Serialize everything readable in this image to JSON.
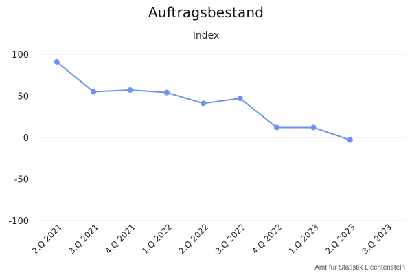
{
  "chart_data": {
    "type": "line",
    "title": "Auftragsbestand",
    "subtitle": "Index",
    "credits": "Amt für Statistik Liechtenstein",
    "categories": [
      "2.Q 2021",
      "3.Q 2021",
      "4.Q 2021",
      "1.Q 2022",
      "2.Q 2022",
      "3.Q 2022",
      "4.Q 2022",
      "1.Q 2023",
      "2.Q 2023",
      "3.Q 2023"
    ],
    "series": [
      {
        "values": [
          91,
          55,
          57,
          54,
          41,
          47,
          12,
          12,
          -3,
          null
        ]
      }
    ],
    "ylim": [
      -100,
      100
    ],
    "yticks": [
      "100",
      "50",
      "0",
      "-50",
      "-100"
    ],
    "grid": true,
    "colors": {
      "line": "#6b93f0",
      "grid": "#e6e6e6"
    }
  }
}
